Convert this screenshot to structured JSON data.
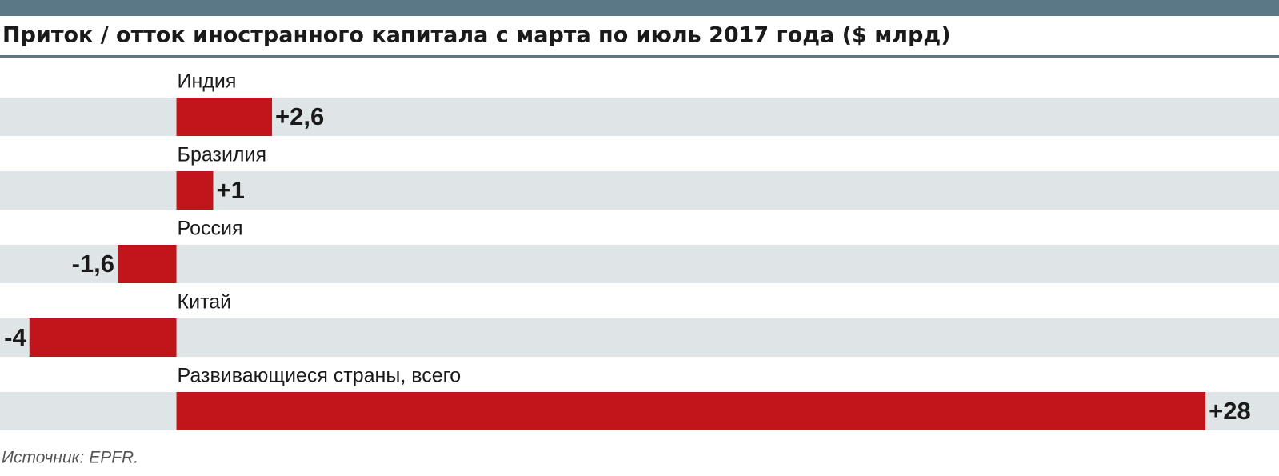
{
  "chart_data": {
    "type": "hbar",
    "title": "Приток / отток иностранного капитала с марта по июль 2017 года ($ млрд)",
    "categories": [
      "Индия",
      "Бразилия",
      "Россия",
      "Китай",
      "Развивающиеся страны, всего"
    ],
    "values": [
      2.6,
      1,
      -1.6,
      -4,
      28
    ],
    "value_labels": [
      "+2,6",
      "+1",
      "-1,6",
      "-4",
      "+28"
    ],
    "color": "#c0161b",
    "xlim": [
      -4.8,
      30
    ],
    "source": "Источник: EPFR."
  }
}
